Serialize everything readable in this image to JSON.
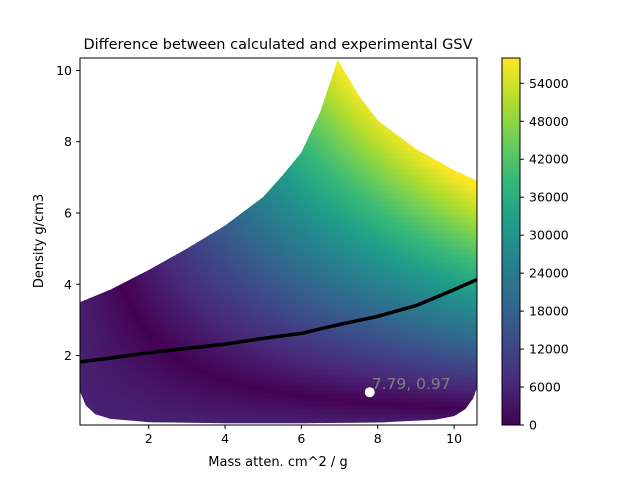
{
  "chart_data": {
    "type": "heatmap",
    "title": "Difference between calculated and experimental GSV",
    "xlabel": "Mass atten. cm^2 / g",
    "ylabel": "Density g/cm3",
    "xlim": [
      0.2,
      10.6
    ],
    "ylim": [
      0.05,
      10.35
    ],
    "x_ticks": [
      "2",
      "4",
      "6",
      "8",
      "10"
    ],
    "x_tick_values": [
      2,
      4,
      6,
      8,
      10
    ],
    "y_ticks": [
      "2",
      "4",
      "6",
      "8",
      "10"
    ],
    "y_tick_values": [
      2,
      4,
      6,
      8,
      10
    ],
    "colormap": "viridis",
    "colorbar": {
      "range": [
        0,
        58000
      ],
      "ticks": [
        "0",
        "6000",
        "12000",
        "18000",
        "24000",
        "30000",
        "36000",
        "42000",
        "48000",
        "54000"
      ],
      "tick_values": [
        0,
        6000,
        12000,
        18000,
        24000,
        30000,
        36000,
        42000,
        48000,
        54000
      ]
    },
    "upper_boundary": {
      "x": [
        0.2,
        1.0,
        2.0,
        3.0,
        4.0,
        5.0,
        5.5,
        6.0,
        6.5,
        6.95,
        7.5,
        8.0,
        9.0,
        10.0,
        10.6
      ],
      "y": [
        3.5,
        3.85,
        4.4,
        5.0,
        5.65,
        6.45,
        7.05,
        7.7,
        8.85,
        10.3,
        9.3,
        8.6,
        7.8,
        7.2,
        6.9
      ]
    },
    "lower_boundary": {
      "x": [
        0.2,
        0.35,
        0.6,
        1.0,
        2.0,
        4.0,
        6.0,
        8.0,
        9.5,
        10.0,
        10.3,
        10.5,
        10.6
      ],
      "y": [
        1.0,
        0.6,
        0.35,
        0.22,
        0.13,
        0.1,
        0.1,
        0.12,
        0.2,
        0.3,
        0.5,
        0.8,
        1.1
      ]
    },
    "series": [
      {
        "type": "line",
        "color": "#000000",
        "x": [
          0.2,
          1.0,
          2.0,
          3.0,
          4.0,
          5.0,
          6.0,
          6.5,
          7.0,
          8.0,
          9.0,
          9.5,
          10.0,
          10.6
        ],
        "y": [
          1.82,
          1.93,
          2.08,
          2.2,
          2.32,
          2.48,
          2.62,
          2.75,
          2.87,
          3.1,
          3.4,
          3.62,
          3.85,
          4.13
        ]
      }
    ],
    "marker": {
      "x": 7.79,
      "y": 0.97,
      "color": "#ffffff"
    },
    "annotation": {
      "text": "7.79, 0.97",
      "x": 7.79,
      "y": 0.97,
      "color": "#7f7f7f"
    }
  }
}
